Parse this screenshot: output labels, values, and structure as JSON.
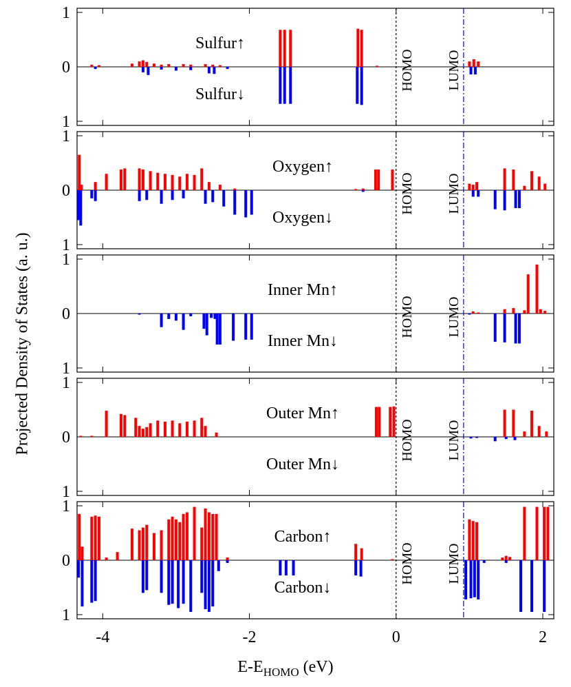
{
  "figure": {
    "ylabel": "Projected Density of States (a. u.)",
    "xlabel_main": "E-E",
    "xlabel_sub": "HOMO",
    "xlabel_unit": " (eV)"
  },
  "chart_data": {
    "type": "bar",
    "xlim": [
      -4.35,
      2.15
    ],
    "ylim": [
      -1,
      1
    ],
    "xticks": [
      -4,
      -2,
      0,
      2
    ],
    "xtick_labels": [
      "-4",
      "-2",
      "0",
      "2"
    ],
    "ytick_labels": [
      "1",
      "0",
      "1"
    ],
    "homo_energy": 0.0,
    "lumo_energy": 0.92,
    "homo_label": "HOMO",
    "lumo_label": "LUMO",
    "colors": {
      "up": "#ff0000",
      "down": "#0000ff",
      "homo_line": "#000000",
      "lumo_line": "#0000ff"
    },
    "panels": [
      {
        "name": "Sulfur",
        "up_label": "Sulfur↑",
        "down_label": "Sulfur↓",
        "up": [
          [
            -4.15,
            0.04
          ],
          [
            -4.05,
            0.03
          ],
          [
            -3.6,
            0.06
          ],
          [
            -3.5,
            0.1
          ],
          [
            -3.45,
            0.12
          ],
          [
            -3.4,
            0.09
          ],
          [
            -3.3,
            0.06
          ],
          [
            -3.2,
            0.04
          ],
          [
            -3.1,
            0.05
          ],
          [
            -2.9,
            0.05
          ],
          [
            -2.8,
            0.04
          ],
          [
            -2.6,
            0.05
          ],
          [
            -2.5,
            0.04
          ],
          [
            -2.4,
            0.03
          ],
          [
            -1.58,
            0.68
          ],
          [
            -1.52,
            0.68
          ],
          [
            -1.44,
            0.68
          ],
          [
            -0.52,
            0.7
          ],
          [
            -0.47,
            0.68
          ],
          [
            -0.26,
            0.02
          ],
          [
            1.0,
            0.1
          ],
          [
            1.06,
            0.14
          ],
          [
            1.12,
            0.1
          ]
        ],
        "down": [
          [
            -4.1,
            0.04
          ],
          [
            -3.45,
            0.1
          ],
          [
            -3.38,
            0.15
          ],
          [
            -3.2,
            0.05
          ],
          [
            -3.0,
            0.07
          ],
          [
            -2.8,
            0.06
          ],
          [
            -2.55,
            0.12
          ],
          [
            -2.48,
            0.13
          ],
          [
            -2.3,
            0.04
          ],
          [
            -1.58,
            0.68
          ],
          [
            -1.52,
            0.68
          ],
          [
            -1.44,
            0.68
          ],
          [
            -0.53,
            0.68
          ],
          [
            -0.47,
            0.7
          ],
          [
            1.02,
            0.14
          ],
          [
            1.08,
            0.14
          ]
        ]
      },
      {
        "name": "Oxygen",
        "up_label": "Oxygen↑",
        "down_label": "Oxygen↓",
        "up": [
          [
            -4.32,
            0.65
          ],
          [
            -4.29,
            0.1
          ],
          [
            -4.1,
            0.15
          ],
          [
            -3.95,
            0.3
          ],
          [
            -3.75,
            0.38
          ],
          [
            -3.7,
            0.4
          ],
          [
            -3.5,
            0.4
          ],
          [
            -3.45,
            0.38
          ],
          [
            -3.35,
            0.35
          ],
          [
            -3.25,
            0.32
          ],
          [
            -3.15,
            0.3
          ],
          [
            -3.05,
            0.28
          ],
          [
            -2.95,
            0.25
          ],
          [
            -2.85,
            0.3
          ],
          [
            -2.75,
            0.28
          ],
          [
            -2.65,
            0.4
          ],
          [
            -2.55,
            0.15
          ],
          [
            -2.4,
            0.1
          ],
          [
            -2.2,
            0.03
          ],
          [
            -0.55,
            0.02
          ],
          [
            -0.45,
            0.03
          ],
          [
            -0.28,
            0.38
          ],
          [
            -0.24,
            0.38
          ],
          [
            -0.05,
            0.38
          ],
          [
            1.0,
            0.12
          ],
          [
            1.05,
            0.1
          ],
          [
            1.1,
            0.15
          ],
          [
            1.48,
            0.4
          ],
          [
            1.6,
            0.38
          ],
          [
            1.75,
            0.08
          ],
          [
            1.85,
            0.35
          ],
          [
            1.95,
            0.25
          ],
          [
            2.03,
            0.12
          ]
        ],
        "down": [
          [
            -4.33,
            0.55
          ],
          [
            -4.3,
            0.65
          ],
          [
            -4.15,
            0.15
          ],
          [
            -4.1,
            0.2
          ],
          [
            -3.5,
            0.2
          ],
          [
            -3.4,
            0.18
          ],
          [
            -3.2,
            0.25
          ],
          [
            -3.05,
            0.18
          ],
          [
            -2.9,
            0.15
          ],
          [
            -2.6,
            0.25
          ],
          [
            -2.5,
            0.22
          ],
          [
            -2.35,
            0.3
          ],
          [
            -2.2,
            0.45
          ],
          [
            -2.05,
            0.5
          ],
          [
            -1.97,
            0.45
          ],
          [
            -0.45,
            0.03
          ],
          [
            1.05,
            0.12
          ],
          [
            1.12,
            0.12
          ],
          [
            1.35,
            0.35
          ],
          [
            1.48,
            0.37
          ],
          [
            1.63,
            0.33
          ],
          [
            1.68,
            0.33
          ]
        ]
      },
      {
        "name": "Inner Mn",
        "up_label": "Inner Mn↑",
        "down_label": "Inner Mn↓",
        "up": [
          [
            1.05,
            0.04
          ],
          [
            1.12,
            0.02
          ],
          [
            1.48,
            0.08
          ],
          [
            1.6,
            0.1
          ],
          [
            1.75,
            0.06
          ],
          [
            1.8,
            0.72
          ],
          [
            1.92,
            0.9
          ],
          [
            1.97,
            0.08
          ],
          [
            2.03,
            0.05
          ]
        ],
        "down": [
          [
            -3.5,
            0.02
          ],
          [
            -3.2,
            0.25
          ],
          [
            -3.1,
            0.1
          ],
          [
            -3.0,
            0.13
          ],
          [
            -2.9,
            0.3
          ],
          [
            -2.8,
            0.05
          ],
          [
            -2.62,
            0.28
          ],
          [
            -2.58,
            0.4
          ],
          [
            -2.52,
            0.08
          ],
          [
            -2.47,
            0.1
          ],
          [
            -2.44,
            0.57
          ],
          [
            -2.4,
            0.57
          ],
          [
            -2.22,
            0.5
          ],
          [
            -2.05,
            0.48
          ],
          [
            -1.97,
            0.48
          ],
          [
            1.0,
            0.02
          ],
          [
            1.35,
            0.52
          ],
          [
            1.48,
            0.53
          ],
          [
            1.63,
            0.55
          ],
          [
            1.68,
            0.55
          ]
        ]
      },
      {
        "name": "Outer Mn",
        "up_label": "Outer Mn↑",
        "down_label": "Outer Mn↓",
        "up": [
          [
            -4.3,
            0.02
          ],
          [
            -4.15,
            0.02
          ],
          [
            -3.95,
            0.48
          ],
          [
            -3.75,
            0.42
          ],
          [
            -3.7,
            0.4
          ],
          [
            -3.55,
            0.35
          ],
          [
            -3.5,
            0.2
          ],
          [
            -3.45,
            0.15
          ],
          [
            -3.4,
            0.18
          ],
          [
            -3.35,
            0.25
          ],
          [
            -3.25,
            0.3
          ],
          [
            -3.15,
            0.28
          ],
          [
            -3.05,
            0.3
          ],
          [
            -2.95,
            0.25
          ],
          [
            -2.85,
            0.28
          ],
          [
            -2.75,
            0.3
          ],
          [
            -2.65,
            0.35
          ],
          [
            -2.6,
            0.2
          ],
          [
            -2.45,
            0.08
          ],
          [
            -0.27,
            0.55
          ],
          [
            -0.23,
            0.55
          ],
          [
            -0.08,
            0.55
          ],
          [
            -0.03,
            0.56
          ],
          [
            1.48,
            0.5
          ],
          [
            1.6,
            0.5
          ],
          [
            1.75,
            0.1
          ],
          [
            1.85,
            0.48
          ],
          [
            1.95,
            0.2
          ],
          [
            2.05,
            0.1
          ]
        ],
        "down": [
          [
            1.02,
            0.03
          ],
          [
            1.1,
            0.02
          ],
          [
            1.35,
            0.08
          ],
          [
            1.5,
            0.04
          ],
          [
            1.62,
            0.06
          ]
        ]
      },
      {
        "name": "Carbon",
        "up_label": "Carbon↑",
        "down_label": "Carbon↓",
        "up": [
          [
            -4.32,
            0.85
          ],
          [
            -4.28,
            0.25
          ],
          [
            -4.15,
            0.8
          ],
          [
            -4.1,
            0.82
          ],
          [
            -4.05,
            0.8
          ],
          [
            -3.95,
            0.05
          ],
          [
            -3.8,
            0.15
          ],
          [
            -3.6,
            0.58
          ],
          [
            -3.5,
            0.55
          ],
          [
            -3.45,
            0.6
          ],
          [
            -3.4,
            0.65
          ],
          [
            -3.3,
            0.5
          ],
          [
            -3.2,
            0.55
          ],
          [
            -3.1,
            0.75
          ],
          [
            -3.05,
            0.8
          ],
          [
            -3.0,
            0.75
          ],
          [
            -2.95,
            0.7
          ],
          [
            -2.9,
            0.85
          ],
          [
            -2.85,
            0.88
          ],
          [
            -2.75,
            0.98
          ],
          [
            -2.65,
            0.6
          ],
          [
            -2.6,
            0.95
          ],
          [
            -2.55,
            0.88
          ],
          [
            -2.5,
            0.85
          ],
          [
            -2.45,
            0.85
          ],
          [
            -2.3,
            0.05
          ],
          [
            -0.55,
            0.3
          ],
          [
            -0.47,
            0.22
          ],
          [
            -0.05,
            0.02
          ],
          [
            1.0,
            0.75
          ],
          [
            1.05,
            0.72
          ],
          [
            1.1,
            0.7
          ],
          [
            1.45,
            0.05
          ],
          [
            1.5,
            0.08
          ],
          [
            1.55,
            0.06
          ],
          [
            1.75,
            0.98
          ],
          [
            1.92,
            0.98
          ],
          [
            2.02,
            0.98
          ],
          [
            2.07,
            0.98
          ]
        ],
        "down": [
          [
            -4.33,
            0.32
          ],
          [
            -4.28,
            0.85
          ],
          [
            -4.15,
            0.78
          ],
          [
            -4.1,
            0.75
          ],
          [
            -3.45,
            0.6
          ],
          [
            -3.4,
            0.55
          ],
          [
            -3.2,
            0.6
          ],
          [
            -3.1,
            0.82
          ],
          [
            -3.05,
            0.8
          ],
          [
            -2.97,
            0.88
          ],
          [
            -2.9,
            0.8
          ],
          [
            -2.8,
            0.95
          ],
          [
            -2.65,
            0.6
          ],
          [
            -2.6,
            0.9
          ],
          [
            -2.55,
            0.95
          ],
          [
            -2.5,
            0.85
          ],
          [
            -2.42,
            0.2
          ],
          [
            -2.3,
            0.05
          ],
          [
            -1.58,
            0.28
          ],
          [
            -1.5,
            0.28
          ],
          [
            -1.4,
            0.28
          ],
          [
            -0.55,
            0.28
          ],
          [
            -0.48,
            0.3
          ],
          [
            0.95,
            0.72
          ],
          [
            1.02,
            0.7
          ],
          [
            1.07,
            0.68
          ],
          [
            1.12,
            0.72
          ],
          [
            1.2,
            0.05
          ],
          [
            1.5,
            0.05
          ],
          [
            1.7,
            0.95
          ],
          [
            1.85,
            0.95
          ],
          [
            2.02,
            0.95
          ]
        ]
      }
    ]
  }
}
